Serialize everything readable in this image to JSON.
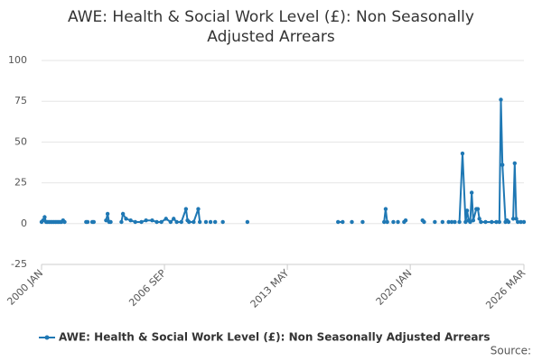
{
  "chart_data": {
    "type": "line",
    "title_lines": [
      "AWE: Health & Social Work Level (£): Non Seasonally",
      "Adjusted Arrears"
    ],
    "source": "Source:",
    "x": [
      "2000-01",
      "2000-02",
      "2000-03",
      "2000-04",
      "2000-05",
      "2000-06",
      "2000-07",
      "2000-08",
      "2000-09",
      "2000-10",
      "2000-11",
      "2000-12",
      "2001-01",
      "2001-02",
      "2001-03",
      "2001-04",
      "2001-05",
      "2002-06",
      "2002-07",
      "2002-08",
      "2002-10",
      "2002-11",
      "2002-12",
      "2003-07",
      "2003-08",
      "2003-09",
      "2003-10",
      "2003-11",
      "2004-05",
      "2004-06",
      "2004-08",
      "2004-11",
      "2005-02",
      "2005-06",
      "2005-09",
      "2006-01",
      "2006-04",
      "2006-07",
      "2006-10",
      "2007-01",
      "2007-03",
      "2007-05",
      "2007-08",
      "2007-11",
      "2007-12",
      "2008-01",
      "2008-04",
      "2008-07",
      "2008-08",
      "2008-09",
      "2008-12",
      "2009-01",
      "2009-03",
      "2009-04",
      "2009-06",
      "2009-07",
      "2009-11",
      "2009-12",
      "2011-03",
      "2011-04",
      "2016-02",
      "2016-05",
      "2016-06",
      "2016-11",
      "2016-12",
      "2017-06",
      "2017-07",
      "2018-08",
      "2018-09",
      "2018-10",
      "2018-11",
      "2019-02",
      "2019-03",
      "2019-05",
      "2019-06",
      "2019-09",
      "2019-10",
      "2019-11",
      "2020-09",
      "2020-10",
      "2020-11",
      "2021-05",
      "2021-06",
      "2021-10",
      "2021-11",
      "2022-02",
      "2022-04",
      "2022-06",
      "2022-07",
      "2022-09",
      "2022-11",
      "2023-01",
      "2023-02",
      "2023-03",
      "2023-04",
      "2023-05",
      "2023-06",
      "2023-08",
      "2023-09",
      "2023-10",
      "2023-11",
      "2024-02",
      "2024-06",
      "2024-09",
      "2024-11",
      "2024-12",
      "2025-01",
      "2025-03",
      "2025-04",
      "2025-05",
      "2025-06",
      "2025-08",
      "2025-09",
      "2025-10",
      "2025-11",
      "2026-01",
      "2026-03"
    ],
    "series": [
      {
        "name": "AWE: Health & Social Work Level (£): Non Seasonally Adjusted Arrears",
        "color": "#1f78b4",
        "values": [
          1,
          2,
          4,
          1,
          1,
          1,
          1,
          1,
          1,
          1,
          1,
          1,
          1,
          1,
          2,
          1,
          null,
          1,
          1,
          null,
          1,
          1,
          null,
          2,
          6,
          1,
          1,
          null,
          1,
          6,
          3,
          2,
          1,
          1,
          2,
          2,
          1,
          1,
          3,
          1,
          3,
          1,
          1,
          9,
          2,
          1,
          1,
          9,
          1,
          null,
          1,
          null,
          1,
          null,
          1,
          null,
          1,
          null,
          1,
          null,
          1,
          1,
          null,
          1,
          null,
          1,
          null,
          1,
          9,
          1,
          null,
          1,
          null,
          1,
          null,
          1,
          2,
          null,
          2,
          1,
          null,
          1,
          null,
          1,
          null,
          1,
          1,
          1,
          null,
          1,
          43,
          1,
          8,
          2,
          1,
          19,
          2,
          9,
          9,
          3,
          1,
          1,
          1,
          1,
          1,
          76,
          36,
          1,
          2,
          1,
          null,
          3,
          37,
          3,
          1,
          1,
          1
        ]
      }
    ],
    "xlim": [
      "2000-01",
      "2026-03"
    ],
    "xticks": [
      {
        "value": "2000-01",
        "label": "2000 JAN"
      },
      {
        "value": "2006-09",
        "label": "2006 SEP"
      },
      {
        "value": "2013-05",
        "label": "2013 MAY"
      },
      {
        "value": "2020-01",
        "label": "2020 JAN"
      },
      {
        "value": "2026-03",
        "label": "2026 MAR"
      }
    ],
    "ylim": [
      -25,
      100
    ],
    "yticks": [
      -25,
      0,
      25,
      50,
      75,
      100
    ],
    "grid": true
  }
}
